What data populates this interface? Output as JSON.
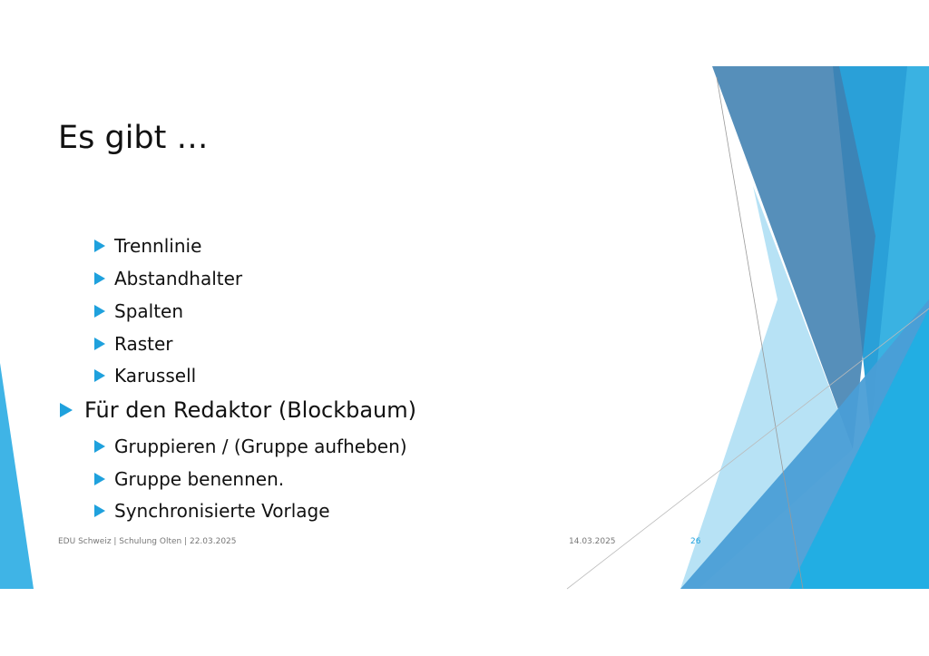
{
  "slide": {
    "title": "Es gibt …",
    "bullets": [
      {
        "level": 2,
        "text": "Trennlinie"
      },
      {
        "level": 2,
        "text": "Abstandhalter"
      },
      {
        "level": 2,
        "text": "Spalten"
      },
      {
        "level": 2,
        "text": "Raster"
      },
      {
        "level": 2,
        "text": "Karussell"
      },
      {
        "level": 1,
        "text": "Für den Redaktor (Blockbaum)"
      },
      {
        "level": 2,
        "text": "Gruppieren / (Gruppe aufheben)"
      },
      {
        "level": 2,
        "text": "Gruppe benennen."
      },
      {
        "level": 2,
        "text": "Synchronisierte Vorlage"
      }
    ],
    "bullet_icon": "triangle-right-icon",
    "accent_color": "#1fa1dd"
  },
  "footer": {
    "left": "EDU Schweiz | Schulung Olten | 22.03.2025",
    "date": "14.03.2025",
    "page_number": "26"
  }
}
